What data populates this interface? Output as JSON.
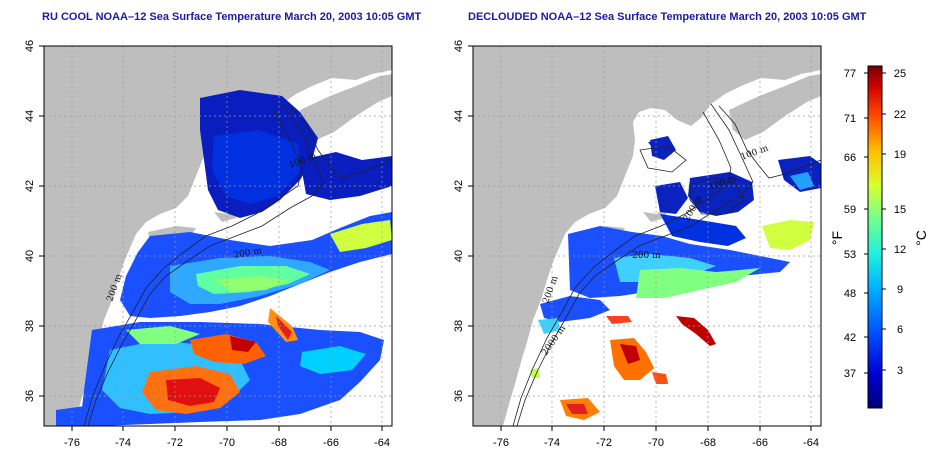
{
  "panels": [
    {
      "title": "RU COOL NOAA–12 Sea Surface Temperature March 20, 2003 10:05 GMT",
      "contour_labels": [
        "100 m",
        "200 m",
        "200 m"
      ]
    },
    {
      "title": "DECLOUDED NOAA–12 Sea Surface Temperature March 20, 2003 10:05 GMT",
      "contour_labels": [
        "100 m",
        "100 m",
        "200 m",
        "200 m",
        "200 m",
        "2000 m"
      ]
    }
  ],
  "axes": {
    "x_ticks": [
      "-76",
      "-74",
      "-72",
      "-70",
      "-68",
      "-66",
      "-64"
    ],
    "y_ticks": [
      "46",
      "44",
      "42",
      "40",
      "38",
      "36"
    ]
  },
  "colorbar": {
    "fahrenheit_ticks": [
      "77",
      "71",
      "66",
      "59",
      "53",
      "48",
      "42",
      "37"
    ],
    "celsius_ticks": [
      "25",
      "22",
      "19",
      "15",
      "12",
      "9",
      "6",
      "3"
    ],
    "fahrenheit_label": "°F",
    "celsius_label": "°C",
    "colors": [
      "#00007a",
      "#0000c8",
      "#0040ff",
      "#0090ff",
      "#00d8f0",
      "#40ffb0",
      "#a8ff50",
      "#ffe000",
      "#ff9000",
      "#ff3000",
      "#c80000",
      "#7a0000"
    ]
  },
  "colors": {
    "land": "#bebebe",
    "cold": "#0a22c0",
    "title": "#1a1aa6"
  }
}
